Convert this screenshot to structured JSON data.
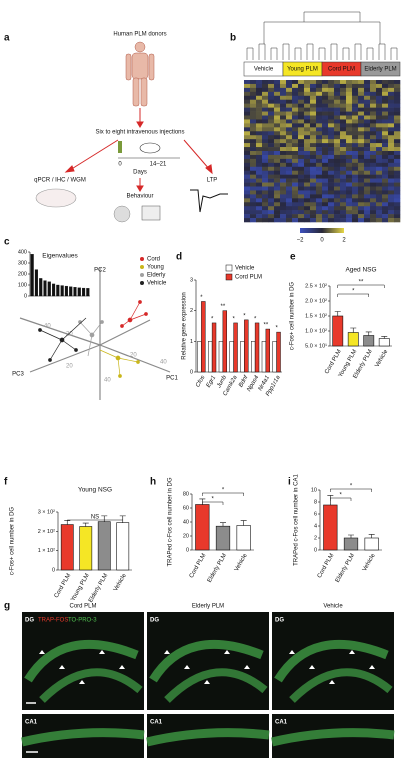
{
  "panel_labels": [
    "a",
    "b",
    "c",
    "d",
    "e",
    "f",
    "g",
    "h",
    "i"
  ],
  "panel_a": {
    "donors": "Human PLM donors",
    "injections": "Six to eight intravenous injections",
    "day_start": "0",
    "day_end": "14–21",
    "days": "Days",
    "assays": "qPCR / IHC / WGM",
    "ltp": "LTP",
    "behaviour": "Behaviour"
  },
  "panel_b": {
    "groups": [
      "Vehicle",
      "Young PLM",
      "Cord PLM",
      "Elderly PLM"
    ],
    "group_colors": [
      "#ffffff",
      "#f5e625",
      "#e8392b",
      "#9a9a9a"
    ],
    "colorbar_ticks": [
      "−2",
      "0",
      "2"
    ]
  },
  "panel_c": {
    "axes": [
      "PC1",
      "PC2",
      "PC3"
    ],
    "legend": [
      "Cord",
      "Young",
      "Elderly",
      "Vehicle"
    ],
    "legend_colors": [
      "#d62828",
      "#c9b61a",
      "#a0a0a0",
      "#222222"
    ],
    "axis_numbers": [
      "40",
      "20",
      "20",
      "40",
      "20",
      "40"
    ]
  },
  "panel_g": {
    "columns": [
      "Cord PLM",
      "Elderly PLM",
      "Vehicle"
    ],
    "stain_a": "TRAP-FOS",
    "stain_b": "TO-PRO-3",
    "regions": [
      "DG",
      "CA1"
    ]
  },
  "chart_data": [
    {
      "type": "bar",
      "y_label": "Relative gene expression",
      "categories": [
        "Cfos",
        "Egr1",
        "Junb",
        "Camk2a",
        "Bdnf",
        "Npas4",
        "Nr4a1",
        "Ppp1r1a"
      ],
      "series": [
        {
          "name": "Vehicle",
          "color": "#ffffff",
          "values": [
            1,
            1,
            1,
            1,
            1,
            1,
            1,
            1
          ]
        },
        {
          "name": "Cord PLM",
          "color": "#e8392b",
          "values": [
            2.3,
            1.6,
            2.0,
            1.6,
            1.7,
            1.6,
            1.4,
            1.3
          ]
        }
      ],
      "ylim": [
        0,
        3
      ],
      "yticks": [
        0,
        1,
        2,
        3
      ],
      "annotations": [
        "*",
        "*",
        "**",
        "*",
        "*",
        "*",
        "**",
        "*"
      ]
    },
    {
      "type": "bar",
      "title": "Aged NSG",
      "y_label": "c-Fos+ cell number in DG",
      "categories": [
        "Cord PLM",
        "Young PLM",
        "Elderly PLM",
        "Vehicle"
      ],
      "colors": [
        "#e8392b",
        "#f5e625",
        "#8c8c8c",
        "#ffffff"
      ],
      "values": [
        150,
        95,
        85,
        75
      ],
      "errors": [
        15,
        15,
        12,
        7
      ],
      "ylim": [
        50,
        250
      ],
      "yticks": [
        {
          "value": 50,
          "label": "5.0 × 10¹"
        },
        {
          "value": 100,
          "label": "1.0 × 10²"
        },
        {
          "value": 150,
          "label": "1.5 × 10²"
        },
        {
          "value": 200,
          "label": "2.0 × 10²"
        },
        {
          "value": 250,
          "label": "2.5 × 10²"
        }
      ],
      "annotations": [
        "*",
        "**"
      ]
    },
    {
      "type": "bar",
      "title": "Young NSG",
      "y_label": "c-Fos+ cell number in DG",
      "categories": [
        "Cord PLM",
        "Young PLM",
        "Elderly PLM",
        "Vehicle"
      ],
      "colors": [
        "#e8392b",
        "#f5e625",
        "#8c8c8c",
        "#ffffff"
      ],
      "values": [
        235,
        225,
        250,
        245
      ],
      "errors": [
        20,
        18,
        30,
        35
      ],
      "ylim": [
        0,
        300
      ],
      "yticks": [
        0,
        {
          "value": 100,
          "label": "1 × 10²"
        },
        {
          "value": 200,
          "label": "2 × 10²"
        },
        {
          "value": 300,
          "label": "3 × 10²"
        }
      ],
      "annotations": [
        "NS"
      ]
    },
    {
      "type": "bar",
      "y_label": "TRAPed c-Fos cell number in DG",
      "categories": [
        "Cord PLM",
        "Elderly PLM",
        "Vehicle"
      ],
      "colors": [
        "#e8392b",
        "#8c8c8c",
        "#ffffff"
      ],
      "values": [
        65,
        34,
        35
      ],
      "errors": [
        8,
        5,
        7
      ],
      "ylim": [
        0,
        80
      ],
      "yticks": [
        0,
        20,
        40,
        60,
        80
      ],
      "annotations": [
        "*",
        "*"
      ]
    },
    {
      "type": "bar",
      "y_label": "TRAPed c-Fos cell number in CA1",
      "categories": [
        "Cord PLM",
        "Elderly PLM",
        "Vehicle"
      ],
      "colors": [
        "#e8392b",
        "#8c8c8c",
        "#ffffff"
      ],
      "values": [
        7.5,
        2,
        2
      ],
      "errors": [
        1.6,
        0.5,
        0.6
      ],
      "ylim": [
        0,
        10
      ],
      "yticks": [
        0,
        2,
        4,
        6,
        8,
        10
      ],
      "annotations": [
        "*",
        "*"
      ]
    },
    {
      "type": "bar",
      "title": "Eigenvalues",
      "color": "#111111",
      "values": [
        380,
        240,
        160,
        140,
        130,
        110,
        100,
        95,
        90,
        85,
        80,
        75,
        72,
        70
      ],
      "ylim": [
        0,
        400
      ],
      "yticks": [
        0,
        100,
        200,
        300,
        400
      ]
    }
  ]
}
